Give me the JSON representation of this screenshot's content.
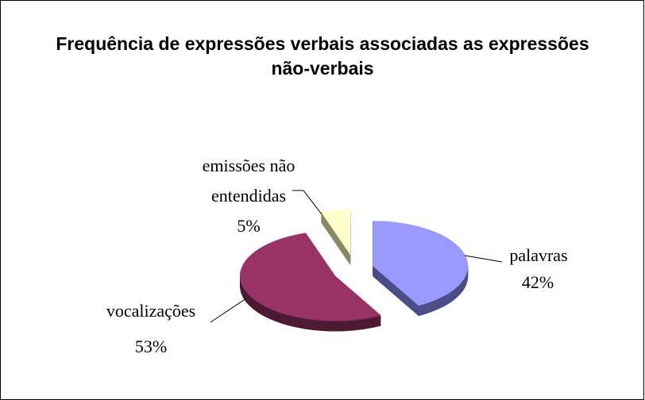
{
  "chart_data": {
    "type": "pie",
    "title": "Frequência de expressões verbais associadas as expressões não-verbais",
    "categories": [
      "palavras",
      "vocalizações",
      "emissões não entendidas"
    ],
    "values": [
      42,
      53,
      5
    ],
    "value_labels": [
      "42%",
      "53%",
      "5%"
    ],
    "colors": [
      "#9999ff",
      "#993366",
      "#ffffcc"
    ],
    "side_colors": [
      "#4d4d88",
      "#4d1a33",
      "#888866"
    ]
  }
}
